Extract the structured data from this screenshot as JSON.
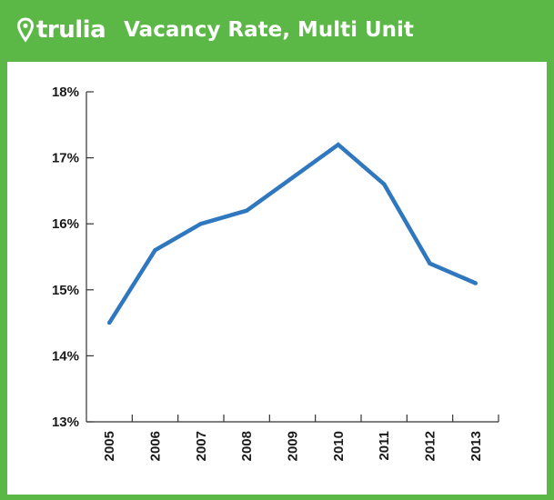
{
  "header": {
    "logo_text": "trulia",
    "title": "Vacancy Rate, Multi Unit"
  },
  "colors": {
    "frame": "#5bb746",
    "line": "#2f78bf",
    "axis": "#333333",
    "text": "#1a1a1a"
  },
  "icons": {
    "logo": "map-pin-icon"
  },
  "chart_data": {
    "type": "line",
    "title": "Vacancy Rate, Multi Unit",
    "xlabel": "",
    "ylabel": "",
    "categories": [
      "2005",
      "2006",
      "2007",
      "2008",
      "2009",
      "2010",
      "2011",
      "2012",
      "2013"
    ],
    "series": [
      {
        "values": [
          14.5,
          15.6,
          16.0,
          16.2,
          16.7,
          17.2,
          16.6,
          15.4,
          15.1
        ]
      }
    ],
    "ylim": [
      13,
      18
    ],
    "yticks": [
      13,
      14,
      15,
      16,
      17,
      18
    ],
    "ytick_labels": [
      "13%",
      "14%",
      "15%",
      "16%",
      "17%",
      "18%"
    ],
    "grid": false,
    "legend": "none"
  }
}
